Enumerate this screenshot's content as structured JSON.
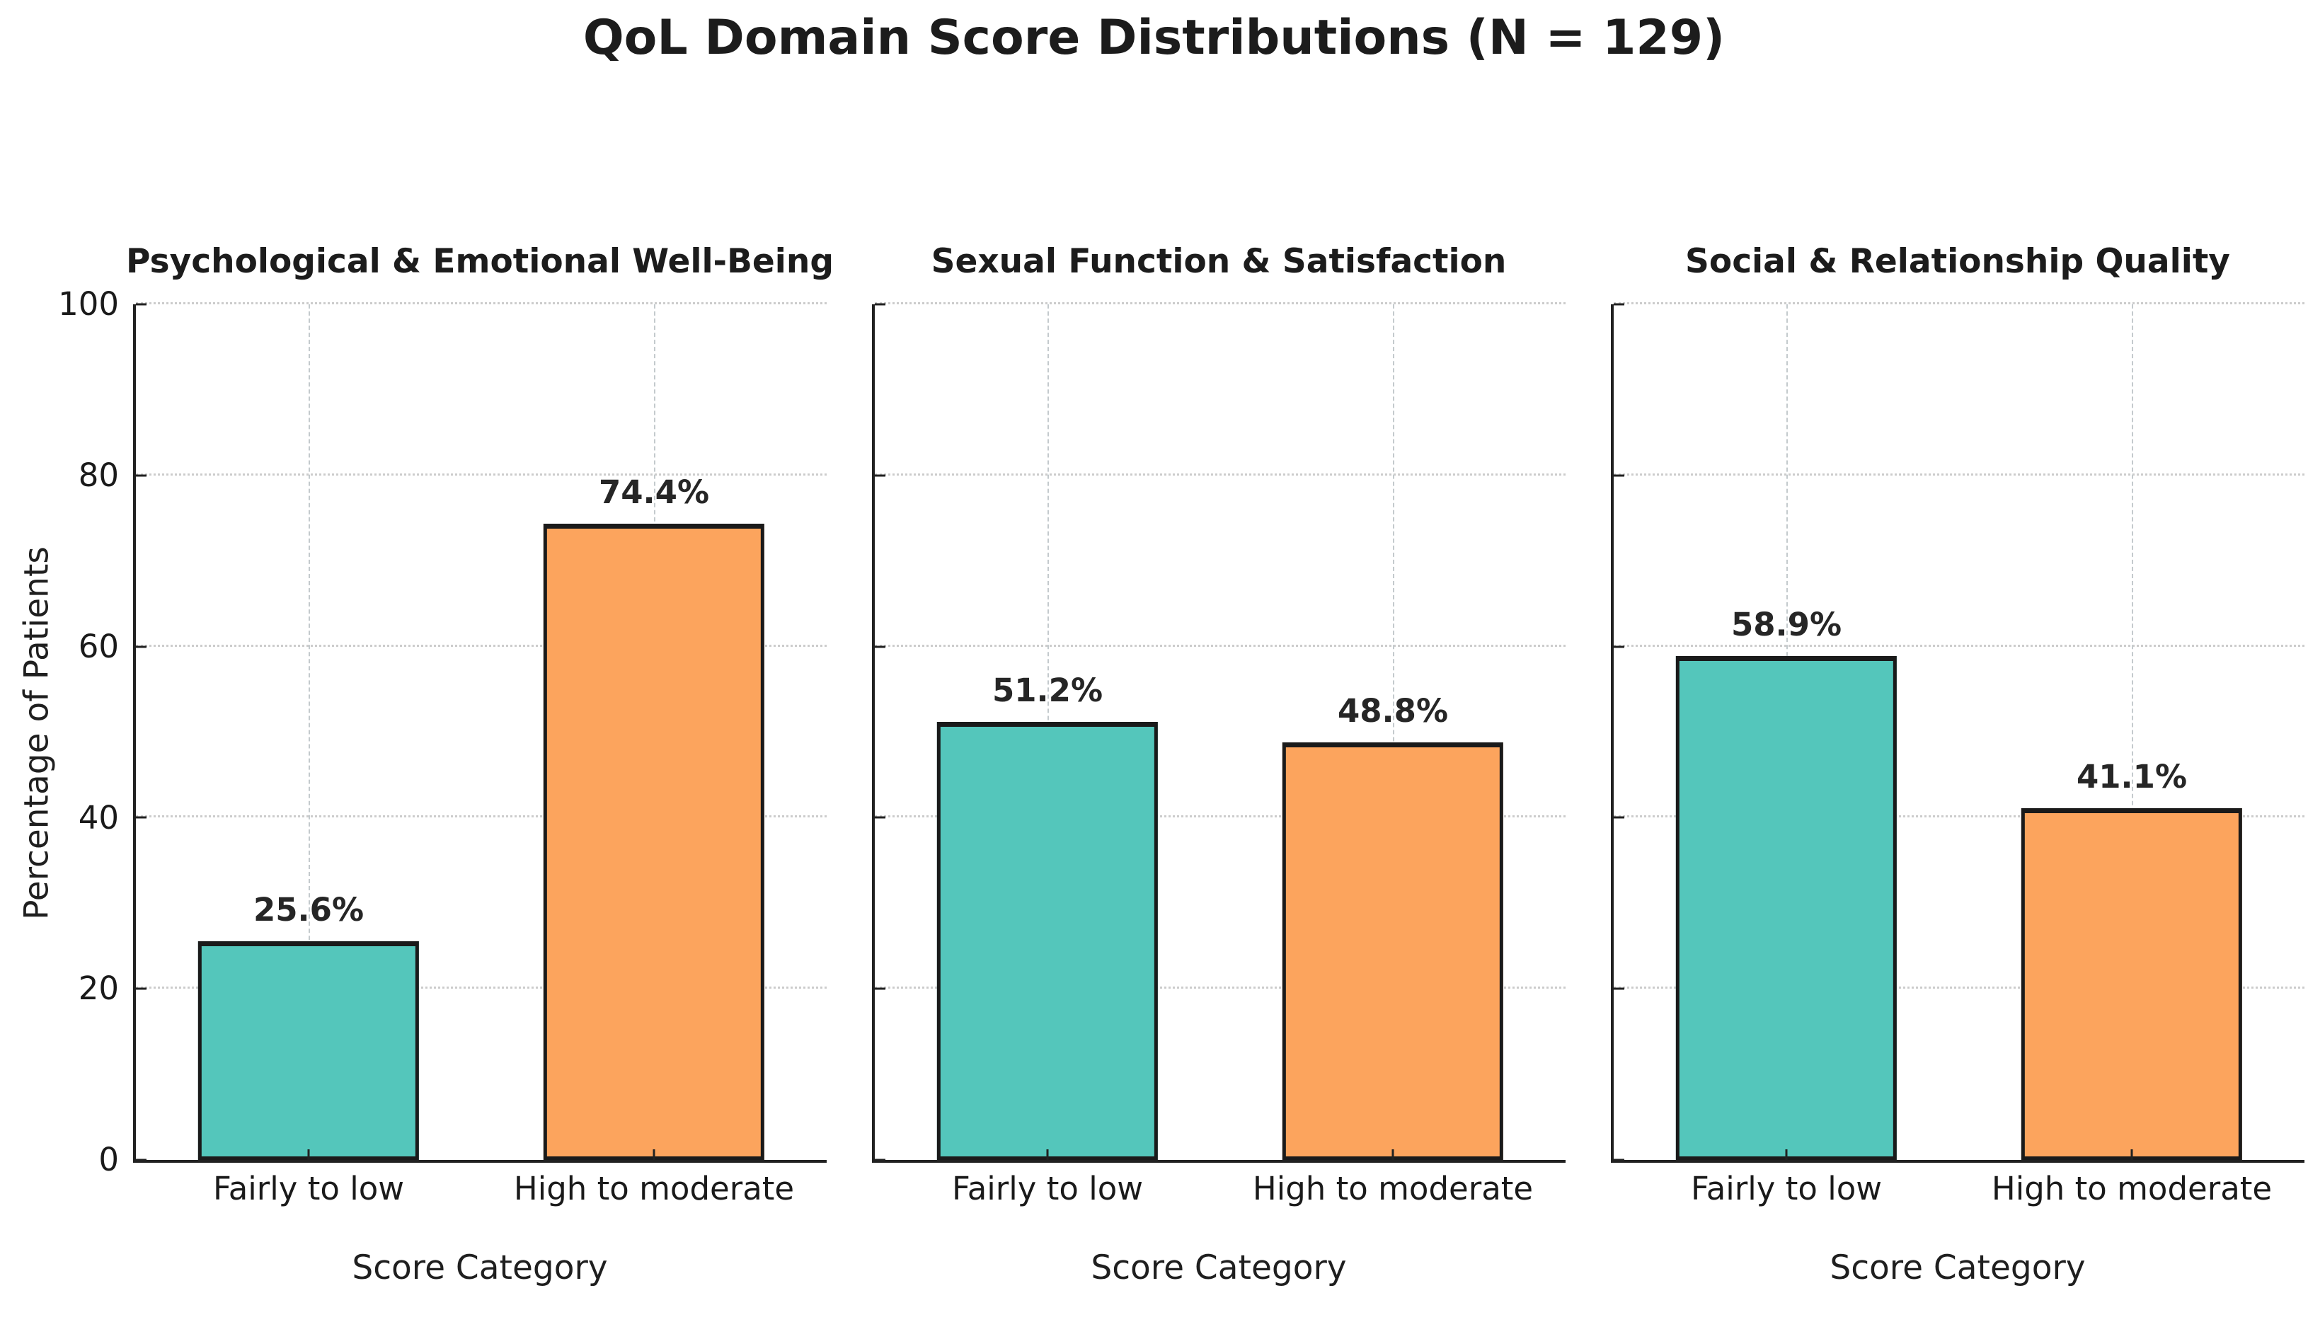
{
  "figure": {
    "suptitle": "QoL Domain Score Distributions (N = 129)",
    "ylabel": "Percentage of Patients",
    "xlabel": "Score Category",
    "background": "#ffffff"
  },
  "colors": {
    "teal_bar": "#54C6BB",
    "orange_bar": "#FCA45D",
    "bar_edge": "#1a1a1a",
    "spine": "#212121",
    "gridline": "#cccccc",
    "text": "#1f1f1f"
  },
  "axis": {
    "ylim": [
      0,
      100
    ],
    "yticks": [
      0,
      20,
      40,
      60,
      80,
      100
    ],
    "ytick_labels": [
      "0",
      "20",
      "40",
      "60",
      "80",
      "100"
    ],
    "grid": "dashed",
    "category_centers_pct": [
      25,
      75
    ]
  },
  "chart_data": [
    {
      "type": "bar",
      "title": "Psychological & Emotional Well-Being",
      "categories": [
        "Fairly to low",
        "High to moderate"
      ],
      "values": [
        25.6,
        74.4
      ],
      "value_labels": [
        "25.6%",
        "74.4%"
      ],
      "bar_colors": [
        "#54C6BB",
        "#FCA45D"
      ],
      "xlabel": "Score Category",
      "ylabel": "Percentage of Patients",
      "ylim": [
        0,
        100
      ],
      "show_ytick_labels": true
    },
    {
      "type": "bar",
      "title": "Sexual Function & Satisfaction",
      "categories": [
        "Fairly to low",
        "High to moderate"
      ],
      "values": [
        51.2,
        48.8
      ],
      "value_labels": [
        "51.2%",
        "48.8%"
      ],
      "bar_colors": [
        "#54C6BB",
        "#FCA45D"
      ],
      "xlabel": "Score Category",
      "ylim": [
        0,
        100
      ],
      "show_ytick_labels": false
    },
    {
      "type": "bar",
      "title": "Social & Relationship Quality",
      "categories": [
        "Fairly to low",
        "High to moderate"
      ],
      "values": [
        58.9,
        41.1
      ],
      "value_labels": [
        "58.9%",
        "41.1%"
      ],
      "bar_colors": [
        "#54C6BB",
        "#FCA45D"
      ],
      "xlabel": "Score Category",
      "ylim": [
        0,
        100
      ],
      "show_ytick_labels": false
    }
  ]
}
